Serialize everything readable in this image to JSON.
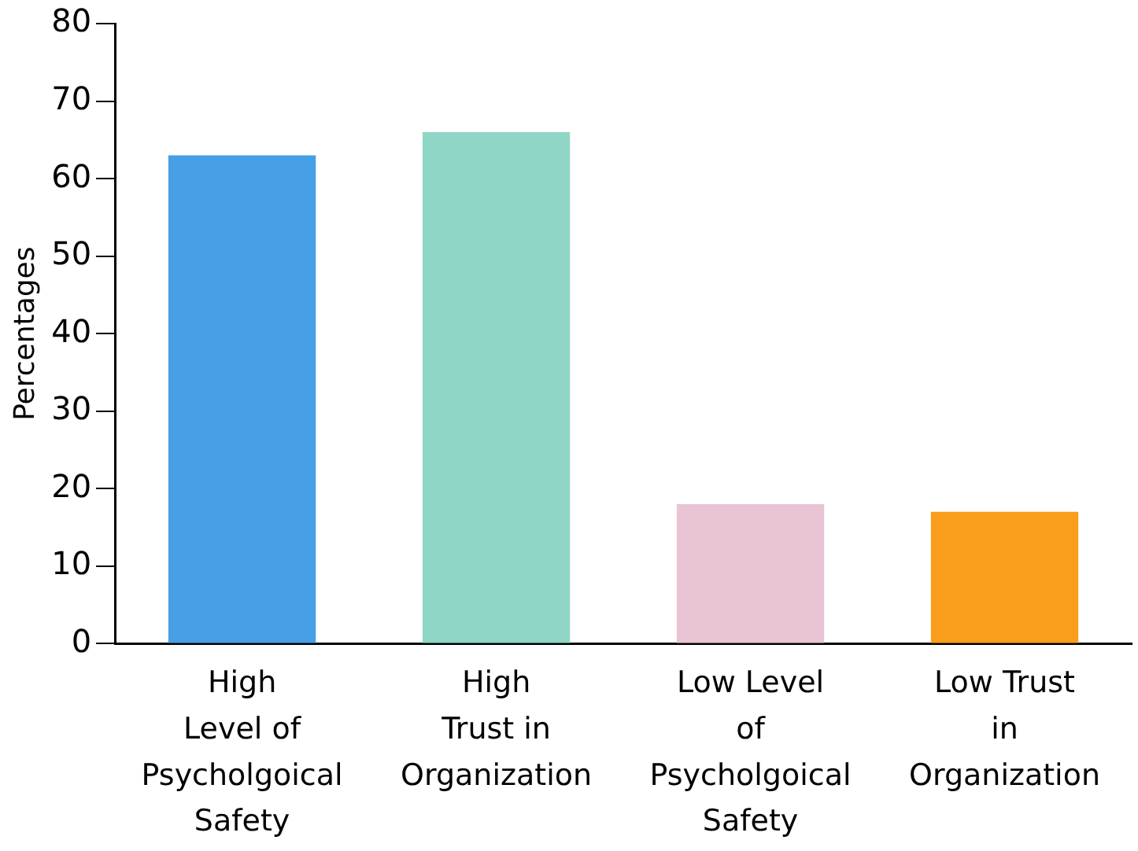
{
  "chart_data": {
    "type": "bar",
    "ylabel": "Percentages",
    "categories": [
      "High Level of Psycholgoical Safety",
      "High Trust in Organization",
      "Low Level of Psycholgoical Safety",
      "Low Trust in Organization"
    ],
    "values": [
      63,
      66,
      18,
      17
    ],
    "colors": [
      "#479fe6",
      "#8fd6c7",
      "#e8c4d4",
      "#fb9d1c"
    ],
    "ylim": [
      0,
      80
    ],
    "yticks": [
      0,
      10,
      20,
      30,
      40,
      50,
      60,
      70,
      80
    ],
    "grid": false,
    "legend": false
  }
}
